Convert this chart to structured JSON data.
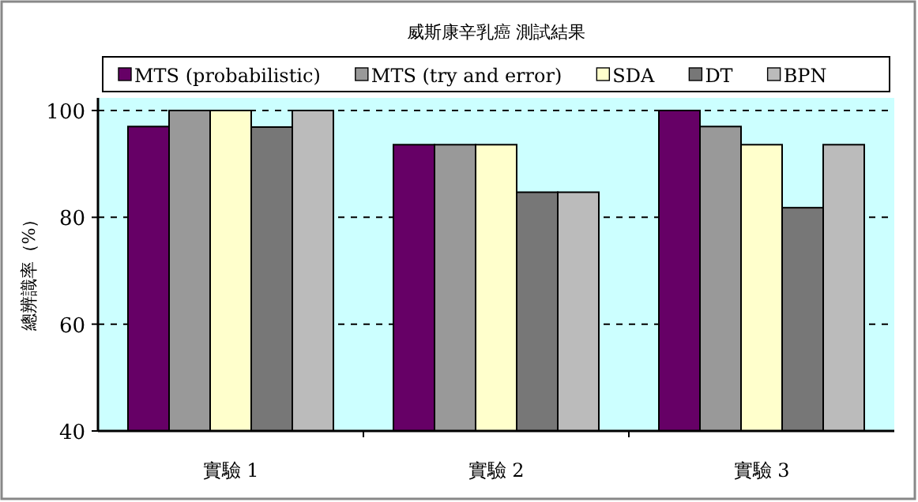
{
  "chart_data": {
    "type": "bar",
    "title": "威斯康辛乳癌 測試結果",
    "ylabel": "總辨識率（%）",
    "categories": [
      "實驗 1",
      "實驗 2",
      "實驗 3"
    ],
    "series": [
      {
        "name": "MTS (probabilistic)",
        "color": "#660066",
        "values": [
          97,
          93.6,
          100
        ]
      },
      {
        "name": "MTS (try and error)",
        "color": "#999999",
        "values": [
          100,
          93.6,
          97
        ]
      },
      {
        "name": "SDA",
        "color": "#ffffcc",
        "values": [
          100,
          93.6,
          93.6
        ]
      },
      {
        "name": "DT",
        "color": "#777777",
        "values": [
          96.9,
          84.7,
          81.8
        ]
      },
      {
        "name": "BPN",
        "color": "#bbbbbb",
        "values": [
          100,
          84.7,
          93.6
        ]
      }
    ],
    "ylim": [
      40,
      100
    ],
    "yticks": [
      40,
      60,
      80,
      100
    ],
    "grid": "y",
    "legend": "top"
  }
}
